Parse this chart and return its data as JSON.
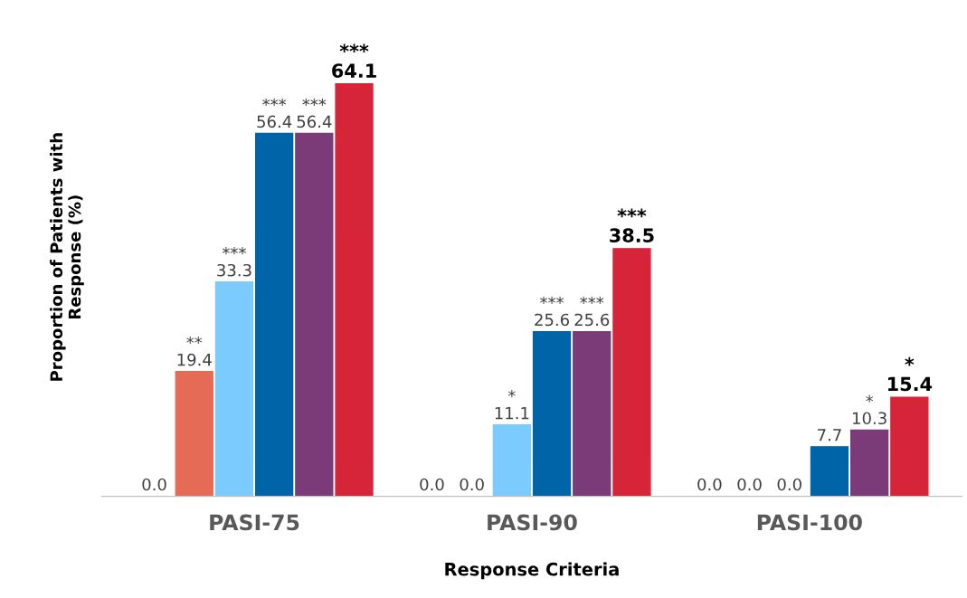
{
  "chart_data": {
    "type": "bar",
    "xlabel": "Response Criteria",
    "ylabel": "Proportion of Patients with\nResponse (%)",
    "categories": [
      "PASI-75",
      "PASI-90",
      "PASI-100"
    ],
    "series": [
      {
        "color": "#a6a6a6",
        "values": [
          0.0,
          0.0,
          0.0
        ],
        "value_labels": [
          "0.0",
          "0.0",
          "0.0"
        ]
      },
      {
        "color": "#e56b57",
        "values": [
          19.4,
          0.0,
          0.0
        ],
        "value_labels": [
          "**\n19.4",
          "0.0",
          "0.0"
        ]
      },
      {
        "color": "#7ccbff",
        "values": [
          33.3,
          11.1,
          0.0
        ],
        "value_labels": [
          "***\n33.3",
          "*\n11.1",
          "0.0"
        ]
      },
      {
        "color": "#0064a8",
        "values": [
          56.4,
          25.6,
          7.7
        ],
        "value_labels": [
          "***\n56.4",
          "***\n25.6",
          "7.7"
        ]
      },
      {
        "color": "#7a3b78",
        "values": [
          56.4,
          25.6,
          10.3
        ],
        "value_labels": [
          "***\n56.4",
          "***\n25.6",
          "*\n10.3"
        ]
      },
      {
        "color": "#d62538",
        "values": [
          64.1,
          38.5,
          15.4
        ],
        "value_labels": [
          "***\n64.1",
          "***\n38.5",
          "*\n15.4"
        ]
      }
    ],
    "grid": false,
    "legend": false
  }
}
